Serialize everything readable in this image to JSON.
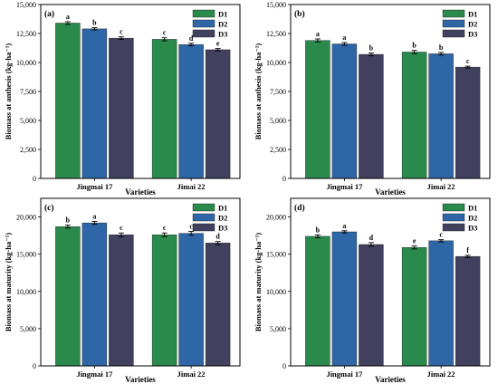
{
  "colors": {
    "D1": "#2a8a4c",
    "D2": "#2e66a7",
    "D3": "#42405f"
  },
  "chart_data": [
    {
      "type": "bar",
      "panel_label": "(a)",
      "ylabel": "Biomass at anthesis (kg·ha⁻¹)",
      "xlabel": "Varieties",
      "categories": [
        "Jingmai 17",
        "Jimai 22"
      ],
      "ylim": [
        0,
        15000
      ],
      "yticks": [
        0,
        2500,
        5000,
        7500,
        10000,
        12500,
        15000
      ],
      "ytick_labels": [
        "0",
        "2,500",
        "5,000",
        "7,500",
        "10,000",
        "12,500",
        "15,000"
      ],
      "legend": "top-right",
      "series": [
        {
          "name": "D1",
          "values": [
            13400,
            12000
          ],
          "errors": [
            120,
            130
          ],
          "letters": [
            "a",
            "c"
          ]
        },
        {
          "name": "D2",
          "values": [
            12900,
            11550
          ],
          "errors": [
            100,
            110
          ],
          "letters": [
            "b",
            "d"
          ]
        },
        {
          "name": "D3",
          "values": [
            12100,
            11100
          ],
          "errors": [
            110,
            100
          ],
          "letters": [
            "c",
            "e"
          ]
        }
      ]
    },
    {
      "type": "bar",
      "panel_label": "(b)",
      "ylabel": "Biomass at anthesis (kg·ha⁻¹)",
      "xlabel": "Varieties",
      "categories": [
        "Jingmai 17",
        "Jimai 22"
      ],
      "ylim": [
        0,
        15000
      ],
      "yticks": [
        0,
        2500,
        5000,
        7500,
        10000,
        12500,
        15000
      ],
      "ytick_labels": [
        "0",
        "2,500",
        "5,000",
        "7,500",
        "10,000",
        "12,500",
        "15,000"
      ],
      "legend": "top-right",
      "series": [
        {
          "name": "D1",
          "values": [
            11900,
            10900
          ],
          "errors": [
            130,
            140
          ],
          "letters": [
            "a",
            "b"
          ]
        },
        {
          "name": "D2",
          "values": [
            11600,
            10750
          ],
          "errors": [
            120,
            120
          ],
          "letters": [
            "a",
            "b"
          ]
        },
        {
          "name": "D3",
          "values": [
            10700,
            9600
          ],
          "errors": [
            120,
            80
          ],
          "letters": [
            "b",
            "c"
          ]
        }
      ]
    },
    {
      "type": "bar",
      "panel_label": "(c)",
      "ylabel": "Biomass at maturity (kg·ha⁻¹)",
      "xlabel": "Varieties",
      "categories": [
        "Jingmai 17",
        "Jimai 22"
      ],
      "ylim": [
        0,
        22500
      ],
      "yticks": [
        0,
        5000,
        10000,
        15000,
        20000
      ],
      "ytick_labels": [
        "0",
        "5,000",
        "10,000",
        "15,000",
        "20,000"
      ],
      "legend": "top-right",
      "series": [
        {
          "name": "D1",
          "values": [
            18700,
            17600
          ],
          "errors": [
            200,
            250
          ],
          "letters": [
            "b",
            "c"
          ]
        },
        {
          "name": "D2",
          "values": [
            19200,
            17800
          ],
          "errors": [
            200,
            250
          ],
          "letters": [
            "a",
            "c"
          ]
        },
        {
          "name": "D3",
          "values": [
            17600,
            16500
          ],
          "errors": [
            250,
            200
          ],
          "letters": [
            "c",
            "d"
          ]
        }
      ]
    },
    {
      "type": "bar",
      "panel_label": "(d)",
      "ylabel": "Biomass at maturity (kg·ha⁻¹)",
      "xlabel": "Varieties",
      "categories": [
        "Jingmai 17",
        "Jimai 22"
      ],
      "ylim": [
        0,
        22500
      ],
      "yticks": [
        0,
        5000,
        10000,
        15000,
        20000
      ],
      "ytick_labels": [
        "0",
        "5,000",
        "10,000",
        "15,000",
        "20,000"
      ],
      "legend": "top-right",
      "series": [
        {
          "name": "D1",
          "values": [
            17400,
            15900
          ],
          "errors": [
            200,
            200
          ],
          "letters": [
            "b",
            "e"
          ]
        },
        {
          "name": "D2",
          "values": [
            18000,
            16800
          ],
          "errors": [
            150,
            150
          ],
          "letters": [
            "a",
            "c"
          ]
        },
        {
          "name": "D3",
          "values": [
            16300,
            14700
          ],
          "errors": [
            250,
            150
          ],
          "letters": [
            "d",
            "f"
          ]
        }
      ]
    }
  ]
}
